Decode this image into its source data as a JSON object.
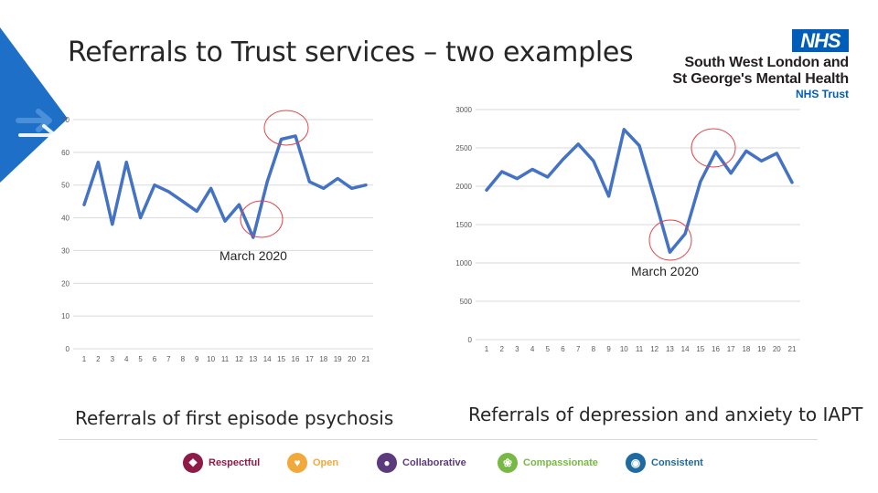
{
  "slide": {
    "title": "Referrals to Trust services – two examples",
    "logo": {
      "badge": "NHS",
      "org_line1": "South West London and",
      "org_line2": "St George's Mental Health",
      "org_line3": "NHS Trust"
    },
    "colors": {
      "series": "#4472c4",
      "annotation": "#e0474c",
      "nhs_blue": "#005eb8",
      "arrow": "#4a90d9"
    }
  },
  "values": [
    {
      "label": "Respectful",
      "icon": "handshake-icon",
      "color": "#8e1a47"
    },
    {
      "label": "Open",
      "icon": "heart-icon",
      "color": "#f2a93b"
    },
    {
      "label": "Collaborative",
      "icon": "people-icon",
      "color": "#5b3a7e"
    },
    {
      "label": "Compassionate",
      "icon": "hands-icon",
      "color": "#78b845"
    },
    {
      "label": "Consistent",
      "icon": "target-icon",
      "color": "#1f6aa0"
    }
  ],
  "chart_data": [
    {
      "type": "line",
      "caption": "Referrals of first episode psychosis",
      "annotation": "March 2020",
      "categories": [
        "1",
        "2",
        "3",
        "4",
        "5",
        "6",
        "7",
        "8",
        "9",
        "10",
        "11",
        "12",
        "13",
        "14",
        "15",
        "16",
        "17",
        "18",
        "19",
        "20",
        "21"
      ],
      "series": [
        {
          "name": "",
          "values": [
            44,
            57,
            38,
            57,
            40,
            50,
            48,
            45,
            42,
            49,
            39,
            44,
            34,
            51,
            64,
            65,
            51,
            49,
            52,
            49,
            50
          ]
        }
      ],
      "ylim": [
        0,
        70
      ],
      "yticks": [
        0,
        10,
        20,
        30,
        40,
        50,
        60,
        70
      ],
      "ytick_labels": [
        "0",
        "10",
        "20",
        "30",
        "40",
        "50",
        "60",
        "70"
      ],
      "grid": true
    },
    {
      "type": "line",
      "caption": "Referrals of depression and anxiety to IAPT",
      "annotation": "March 2020",
      "categories": [
        "1",
        "2",
        "3",
        "4",
        "5",
        "6",
        "7",
        "8",
        "9",
        "10",
        "11",
        "12",
        "13",
        "14",
        "15",
        "16",
        "17",
        "18",
        "19",
        "20",
        "21"
      ],
      "series": [
        {
          "name": "",
          "values": [
            1950,
            2190,
            2100,
            2220,
            2120,
            2350,
            2550,
            2330,
            1870,
            2740,
            2530,
            1850,
            1140,
            1380,
            2060,
            2450,
            2170,
            2460,
            2330,
            2430,
            2050
          ]
        }
      ],
      "ylim": [
        0,
        3000
      ],
      "yticks": [
        0,
        500,
        1000,
        1500,
        2000,
        2500,
        3000
      ],
      "ytick_labels": [
        "0",
        "500",
        "1000",
        "1500",
        "2000",
        "2500",
        "3000"
      ],
      "grid": true
    }
  ]
}
